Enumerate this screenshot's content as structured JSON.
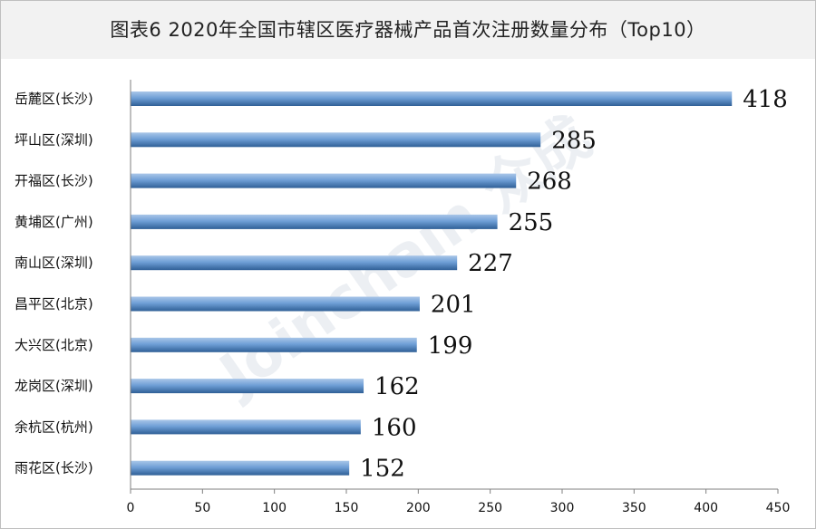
{
  "chart_data": {
    "type": "bar",
    "orientation": "horizontal",
    "title": "图表6  2020年全国市辖区医疗器械产品首次注册数量分布（Top10）",
    "categories": [
      "岳麓区(长沙)",
      "坪山区(深圳)",
      "开福区(长沙)",
      "黄埔区(广州)",
      "南山区(深圳)",
      "昌平区(北京)",
      "大兴区(北京)",
      "龙岗区(深圳)",
      "余杭区(杭州)",
      "雨花区(长沙)"
    ],
    "values": [
      418,
      285,
      268,
      255,
      227,
      201,
      199,
      162,
      160,
      152
    ],
    "xlim": [
      0,
      450
    ],
    "xticks": [
      0,
      50,
      100,
      150,
      200,
      250,
      300,
      350,
      400,
      450
    ],
    "grid": false,
    "legend": "none",
    "bar_color": "#5b8ec7",
    "watermark": "Joinchain 众成"
  }
}
